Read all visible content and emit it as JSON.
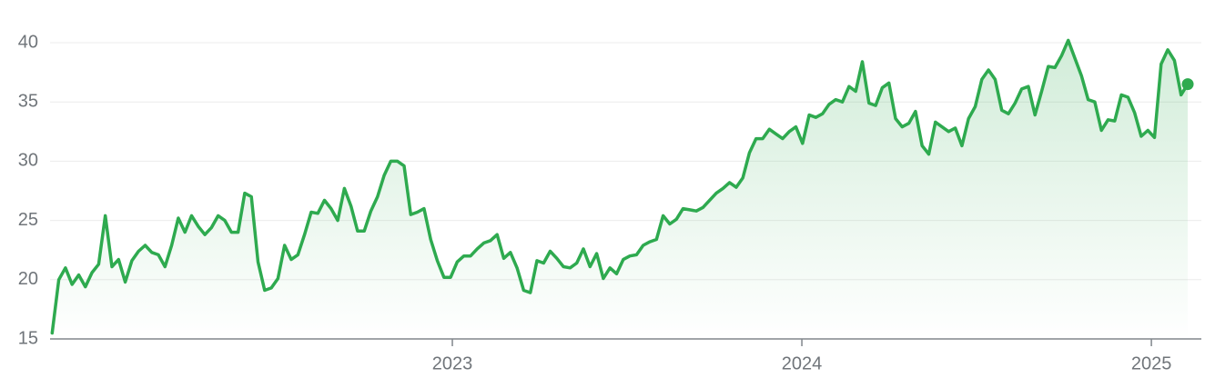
{
  "chart_data": {
    "type": "line",
    "color": "#2eaa4f",
    "fill": true,
    "grid": true,
    "x": [
      2021.855,
      2021.874,
      2021.893,
      2021.912,
      2021.931,
      2021.95,
      2021.969,
      2021.988,
      2022.007,
      2022.026,
      2022.045,
      2022.064,
      2022.083,
      2022.102,
      2022.121,
      2022.14,
      2022.159,
      2022.178,
      2022.197,
      2022.216,
      2022.235,
      2022.254,
      2022.273,
      2022.292,
      2022.311,
      2022.33,
      2022.349,
      2022.368,
      2022.387,
      2022.406,
      2022.425,
      2022.444,
      2022.463,
      2022.482,
      2022.501,
      2022.52,
      2022.539,
      2022.558,
      2022.577,
      2022.596,
      2022.615,
      2022.634,
      2022.653,
      2022.672,
      2022.691,
      2022.71,
      2022.729,
      2022.748,
      2022.767,
      2022.786,
      2022.805,
      2022.824,
      2022.843,
      2022.862,
      2022.881,
      2022.9,
      2022.919,
      2022.938,
      2022.957,
      2022.976,
      2022.995,
      2023.014,
      2023.033,
      2023.052,
      2023.071,
      2023.09,
      2023.109,
      2023.128,
      2023.147,
      2023.166,
      2023.185,
      2023.204,
      2023.223,
      2023.242,
      2023.261,
      2023.28,
      2023.299,
      2023.318,
      2023.337,
      2023.356,
      2023.375,
      2023.394,
      2023.413,
      2023.432,
      2023.451,
      2023.47,
      2023.489,
      2023.508,
      2023.527,
      2023.546,
      2023.565,
      2023.584,
      2023.603,
      2023.622,
      2023.641,
      2023.66,
      2023.679,
      2023.698,
      2023.717,
      2023.736,
      2023.755,
      2023.774,
      2023.793,
      2023.812,
      2023.831,
      2023.85,
      2023.869,
      2023.888,
      2023.907,
      2023.926,
      2023.945,
      2023.964,
      2023.983,
      2024.002,
      2024.021,
      2024.04,
      2024.059,
      2024.078,
      2024.097,
      2024.116,
      2024.135,
      2024.154,
      2024.173,
      2024.192,
      2024.211,
      2024.23,
      2024.249,
      2024.268,
      2024.287,
      2024.306,
      2024.325,
      2024.344,
      2024.363,
      2024.382,
      2024.401,
      2024.42,
      2024.439,
      2024.458,
      2024.477,
      2024.496,
      2024.515,
      2024.534,
      2024.553,
      2024.572,
      2024.591,
      2024.61,
      2024.629,
      2024.648,
      2024.667,
      2024.686,
      2024.705,
      2024.724,
      2024.743,
      2024.762,
      2024.781,
      2024.8,
      2024.819,
      2024.838,
      2024.857,
      2024.876,
      2024.895,
      2024.914,
      2024.933,
      2024.952,
      2024.971,
      2024.99,
      2025.009,
      2025.028,
      2025.047,
      2025.066,
      2025.085,
      2025.104
    ],
    "values": [
      15.5,
      20.0,
      21.0,
      19.6,
      20.4,
      19.4,
      20.6,
      21.3,
      25.4,
      21.1,
      21.7,
      19.8,
      21.6,
      22.4,
      22.9,
      22.3,
      22.1,
      21.1,
      22.9,
      25.2,
      24.0,
      25.4,
      24.5,
      23.8,
      24.4,
      25.4,
      25.0,
      24.0,
      24.0,
      27.3,
      27.0,
      21.5,
      19.1,
      19.3,
      20.1,
      22.9,
      21.7,
      22.1,
      23.8,
      25.7,
      25.6,
      26.7,
      26.0,
      25.0,
      27.7,
      26.2,
      24.1,
      24.1,
      25.8,
      27.0,
      28.8,
      30.0,
      30.0,
      29.6,
      25.5,
      25.7,
      26.0,
      23.4,
      21.6,
      20.2,
      20.2,
      21.5,
      22.0,
      22.0,
      22.6,
      23.1,
      23.3,
      23.8,
      21.8,
      22.3,
      21.0,
      19.1,
      18.9,
      21.6,
      21.4,
      22.4,
      21.8,
      21.1,
      21.0,
      21.4,
      22.6,
      21.1,
      22.2,
      20.1,
      21.0,
      20.5,
      21.7,
      22.0,
      22.1,
      22.9,
      23.2,
      23.4,
      25.4,
      24.7,
      25.1,
      26.0,
      25.9,
      25.8,
      26.1,
      26.7,
      27.3,
      27.7,
      28.2,
      27.8,
      28.6,
      30.7,
      31.9,
      31.9,
      32.7,
      32.3,
      31.9,
      32.5,
      32.9,
      31.5,
      33.9,
      33.7,
      34.0,
      34.8,
      35.2,
      35.0,
      36.3,
      35.9,
      38.4,
      34.9,
      34.7,
      36.2,
      36.6,
      33.6,
      32.9,
      33.2,
      34.2,
      31.3,
      30.6,
      33.3,
      32.9,
      32.5,
      32.8,
      31.3,
      33.6,
      34.6,
      36.9,
      37.7,
      36.9,
      34.3,
      34.0,
      34.9,
      36.1,
      36.3,
      33.9,
      35.9,
      38.0,
      37.9,
      38.9,
      40.2,
      38.7,
      37.2,
      35.2,
      35.0,
      32.6,
      33.5,
      33.4,
      35.6,
      35.4,
      34.1,
      32.1,
      32.6,
      32.0,
      38.2,
      39.4,
      38.5,
      35.6,
      36.5
    ],
    "xlim": [
      2021.849,
      2025.143
    ],
    "xticks": [
      2023,
      2024,
      2025
    ],
    "ylim": [
      15,
      40
    ],
    "yticks": [
      15,
      20,
      25,
      30,
      35,
      40
    ]
  }
}
